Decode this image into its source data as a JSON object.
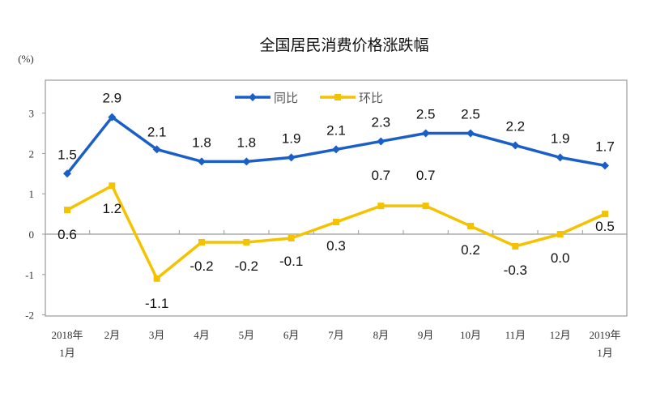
{
  "chart_data": {
    "type": "line",
    "title": "全国居民消费价格涨跌幅",
    "ylabel": "(%)",
    "xlabel": "",
    "ylim": [
      -2,
      3.8
    ],
    "yticks": [
      -2,
      -1,
      0,
      1,
      2,
      3
    ],
    "categories": [
      [
        "2018年",
        "1月"
      ],
      [
        "2月"
      ],
      [
        "3月"
      ],
      [
        "4月"
      ],
      [
        "5月"
      ],
      [
        "6月"
      ],
      [
        "7月"
      ],
      [
        "8月"
      ],
      [
        "9月"
      ],
      [
        "10月"
      ],
      [
        "11月"
      ],
      [
        "12月"
      ],
      [
        "2019年",
        "1月"
      ]
    ],
    "legend_position": "top-center",
    "grid": false,
    "series": [
      {
        "name": "同比",
        "color": "#1A5FC8",
        "marker": "diamond",
        "values": [
          1.5,
          2.9,
          2.1,
          1.8,
          1.8,
          1.9,
          2.1,
          2.3,
          2.5,
          2.5,
          2.2,
          1.9,
          1.7
        ],
        "labels": [
          "1.5",
          "2.9",
          "2.1",
          "1.8",
          "1.8",
          "1.9",
          "2.1",
          "2.3",
          "2.5",
          "2.5",
          "2.2",
          "1.9",
          "1.7"
        ]
      },
      {
        "name": "环比",
        "color": "#F5C200",
        "marker": "square",
        "values": [
          0.6,
          1.2,
          -1.1,
          -0.2,
          -0.2,
          -0.1,
          0.3,
          0.7,
          0.7,
          0.2,
          -0.3,
          0.0,
          0.5
        ],
        "labels": [
          "0.6",
          "1.2",
          "-1.1",
          "-0.2",
          "-0.2",
          "-0.1",
          "0.3",
          "0.7",
          "0.7",
          "0.2",
          "-0.3",
          "0.0",
          "0.5"
        ]
      }
    ]
  }
}
